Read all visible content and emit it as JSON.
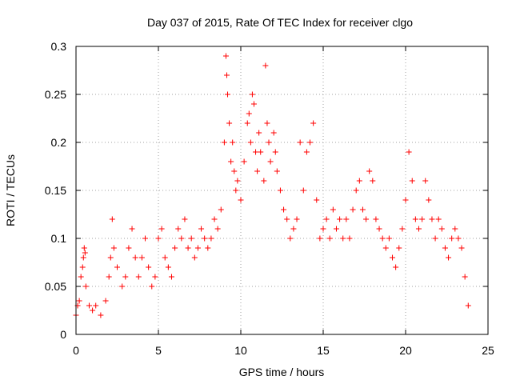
{
  "chart_data": {
    "type": "scatter",
    "title": "Day 037 of 2015, Rate Of TEC Index for receiver clgo",
    "xlabel": "GPS time / hours",
    "ylabel": "ROTI / TECUs",
    "xlim": [
      0,
      25
    ],
    "ylim": [
      0,
      0.3
    ],
    "x_ticks": [
      "0",
      "5",
      "10",
      "15",
      "20",
      "25"
    ],
    "y_ticks": [
      "0",
      "0.05",
      "0.1",
      "0.15",
      "0.2",
      "0.25",
      "0.3"
    ],
    "x_tick_values": [
      0,
      5,
      10,
      15,
      20,
      25
    ],
    "y_tick_values": [
      0,
      0.05,
      0.1,
      0.15,
      0.2,
      0.25,
      0.3
    ],
    "grid": true,
    "marker": "+",
    "color": "#ff0000",
    "series": [
      {
        "points": [
          [
            0.0,
            0.02
          ],
          [
            0.1,
            0.03
          ],
          [
            0.2,
            0.035
          ],
          [
            0.3,
            0.06
          ],
          [
            0.4,
            0.07
          ],
          [
            0.45,
            0.08
          ],
          [
            0.5,
            0.09
          ],
          [
            0.55,
            0.085
          ],
          [
            0.6,
            0.05
          ],
          [
            0.8,
            0.03
          ],
          [
            1.0,
            0.025
          ],
          [
            1.2,
            0.03
          ],
          [
            1.5,
            0.02
          ],
          [
            1.8,
            0.035
          ],
          [
            2.0,
            0.06
          ],
          [
            2.1,
            0.08
          ],
          [
            2.2,
            0.12
          ],
          [
            2.3,
            0.09
          ],
          [
            2.5,
            0.07
          ],
          [
            2.8,
            0.05
          ],
          [
            3.0,
            0.06
          ],
          [
            3.2,
            0.09
          ],
          [
            3.4,
            0.11
          ],
          [
            3.6,
            0.08
          ],
          [
            3.8,
            0.06
          ],
          [
            4.0,
            0.08
          ],
          [
            4.2,
            0.1
          ],
          [
            4.4,
            0.07
          ],
          [
            4.6,
            0.05
          ],
          [
            4.8,
            0.06
          ],
          [
            5.0,
            0.1
          ],
          [
            5.2,
            0.11
          ],
          [
            5.4,
            0.08
          ],
          [
            5.6,
            0.07
          ],
          [
            5.8,
            0.06
          ],
          [
            6.0,
            0.09
          ],
          [
            6.2,
            0.11
          ],
          [
            6.4,
            0.1
          ],
          [
            6.6,
            0.12
          ],
          [
            6.8,
            0.09
          ],
          [
            7.0,
            0.1
          ],
          [
            7.2,
            0.08
          ],
          [
            7.4,
            0.09
          ],
          [
            7.6,
            0.11
          ],
          [
            7.8,
            0.1
          ],
          [
            8.0,
            0.09
          ],
          [
            8.2,
            0.1
          ],
          [
            8.4,
            0.12
          ],
          [
            8.6,
            0.11
          ],
          [
            8.8,
            0.13
          ],
          [
            9.0,
            0.2
          ],
          [
            9.1,
            0.29
          ],
          [
            9.15,
            0.27
          ],
          [
            9.2,
            0.25
          ],
          [
            9.3,
            0.22
          ],
          [
            9.4,
            0.18
          ],
          [
            9.5,
            0.2
          ],
          [
            9.6,
            0.17
          ],
          [
            9.7,
            0.15
          ],
          [
            9.8,
            0.16
          ],
          [
            10.0,
            0.14
          ],
          [
            10.2,
            0.18
          ],
          [
            10.4,
            0.22
          ],
          [
            10.5,
            0.23
          ],
          [
            10.6,
            0.2
          ],
          [
            10.7,
            0.25
          ],
          [
            10.8,
            0.24
          ],
          [
            10.9,
            0.19
          ],
          [
            11.0,
            0.17
          ],
          [
            11.1,
            0.21
          ],
          [
            11.2,
            0.19
          ],
          [
            11.4,
            0.16
          ],
          [
            11.5,
            0.28
          ],
          [
            11.6,
            0.22
          ],
          [
            11.7,
            0.2
          ],
          [
            11.8,
            0.18
          ],
          [
            12.0,
            0.21
          ],
          [
            12.1,
            0.19
          ],
          [
            12.2,
            0.17
          ],
          [
            12.4,
            0.15
          ],
          [
            12.6,
            0.13
          ],
          [
            12.8,
            0.12
          ],
          [
            13.0,
            0.1
          ],
          [
            13.2,
            0.11
          ],
          [
            13.4,
            0.12
          ],
          [
            13.6,
            0.2
          ],
          [
            13.8,
            0.15
          ],
          [
            14.0,
            0.19
          ],
          [
            14.2,
            0.2
          ],
          [
            14.4,
            0.22
          ],
          [
            14.6,
            0.14
          ],
          [
            14.8,
            0.1
          ],
          [
            15.0,
            0.11
          ],
          [
            15.2,
            0.12
          ],
          [
            15.4,
            0.1
          ],
          [
            15.6,
            0.13
          ],
          [
            15.8,
            0.11
          ],
          [
            16.0,
            0.12
          ],
          [
            16.2,
            0.1
          ],
          [
            16.4,
            0.12
          ],
          [
            16.6,
            0.1
          ],
          [
            16.8,
            0.13
          ],
          [
            17.0,
            0.15
          ],
          [
            17.2,
            0.16
          ],
          [
            17.4,
            0.13
          ],
          [
            17.6,
            0.12
          ],
          [
            17.8,
            0.17
          ],
          [
            18.0,
            0.16
          ],
          [
            18.2,
            0.12
          ],
          [
            18.4,
            0.11
          ],
          [
            18.6,
            0.1
          ],
          [
            18.8,
            0.09
          ],
          [
            19.0,
            0.1
          ],
          [
            19.2,
            0.08
          ],
          [
            19.4,
            0.07
          ],
          [
            19.6,
            0.09
          ],
          [
            19.8,
            0.11
          ],
          [
            20.0,
            0.14
          ],
          [
            20.2,
            0.19
          ],
          [
            20.4,
            0.16
          ],
          [
            20.6,
            0.12
          ],
          [
            20.8,
            0.11
          ],
          [
            21.0,
            0.12
          ],
          [
            21.2,
            0.16
          ],
          [
            21.4,
            0.14
          ],
          [
            21.6,
            0.12
          ],
          [
            21.8,
            0.1
          ],
          [
            22.0,
            0.12
          ],
          [
            22.2,
            0.11
          ],
          [
            22.4,
            0.09
          ],
          [
            22.6,
            0.08
          ],
          [
            22.8,
            0.1
          ],
          [
            23.0,
            0.11
          ],
          [
            23.2,
            0.1
          ],
          [
            23.4,
            0.09
          ],
          [
            23.6,
            0.06
          ],
          [
            23.8,
            0.03
          ]
        ]
      }
    ]
  }
}
